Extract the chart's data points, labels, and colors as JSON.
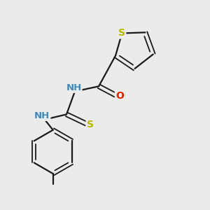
{
  "background_color": "#ebebeb",
  "bond_color": "#1a1a1a",
  "atom_colors": {
    "S": "#b8b800",
    "N": "#3355cc",
    "O": "#dd2200",
    "H": "#4488bb"
  },
  "figsize": [
    3.0,
    3.0
  ],
  "dpi": 100,
  "xlim": [
    0,
    10
  ],
  "ylim": [
    0,
    10
  ]
}
